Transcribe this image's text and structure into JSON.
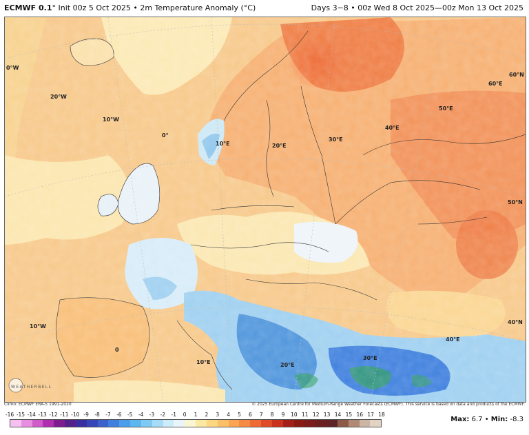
{
  "header": {
    "model": "ECMWF 0.1",
    "model_suffix": "°",
    "subtitle": "Init 00z 5 Oct 2025 • 2m Temperature Anomaly (°C)",
    "valid": "Days 3−8 • 00z Wed 8 Oct 2025—00z Mon 13 Oct 2025"
  },
  "map": {
    "graticule_labels": [
      "0°W",
      "20°W",
      "10°W",
      "0°",
      "10°E",
      "20°E",
      "30°E",
      "40°E",
      "50°E",
      "60°E",
      "60°N",
      "50°N",
      "40°N",
      "10°W",
      "0",
      "10°E",
      "20°E",
      "30°E",
      "40°E"
    ]
  },
  "footer": {
    "climo": "Climo: ECMWF ERA-5 1991-2020",
    "copyright": "© 2025 European Centre for Medium-Range Weather Forecasts (ECMWF). This service is based on data and products of the ECMWF."
  },
  "colorbar": {
    "ticks": [
      "-16",
      "-15",
      "-14",
      "-13",
      "-12",
      "-11",
      "-10",
      "-9",
      "-8",
      "-7",
      "-6",
      "-5",
      "-4",
      "-3",
      "-2",
      "-1",
      "0",
      "1",
      "2",
      "3",
      "4",
      "5",
      "6",
      "7",
      "8",
      "9",
      "10",
      "11",
      "12",
      "13",
      "14",
      "15",
      "16",
      "17",
      "18"
    ],
    "colors": [
      "#f7c0f2",
      "#e88de0",
      "#cf5cc8",
      "#b02fb0",
      "#7e1b8f",
      "#56208c",
      "#3b2fa0",
      "#3546b8",
      "#3a61cc",
      "#3f80de",
      "#4a9eea",
      "#5cb6f0",
      "#7fcaf4",
      "#a6dcf7",
      "#cdecfa",
      "#eaf5fb",
      "#fbf6d2",
      "#fbe8a3",
      "#fcd681",
      "#fbc067",
      "#f9a552",
      "#f68a42",
      "#ef6b35",
      "#e04b2a",
      "#c8321f",
      "#a41f17",
      "#8a1a14",
      "#7a1c1c",
      "#6b1f22",
      "#5f2327",
      "#8d5a4a",
      "#b08a76",
      "#cdb5a3",
      "#e2d3c4"
    ]
  },
  "stats": {
    "max_label": "Max:",
    "max_value": "6.7",
    "sep": "•",
    "min_label": "Min:",
    "min_value": "-8.3"
  },
  "logo": {
    "text": "WEATHERBELL"
  }
}
